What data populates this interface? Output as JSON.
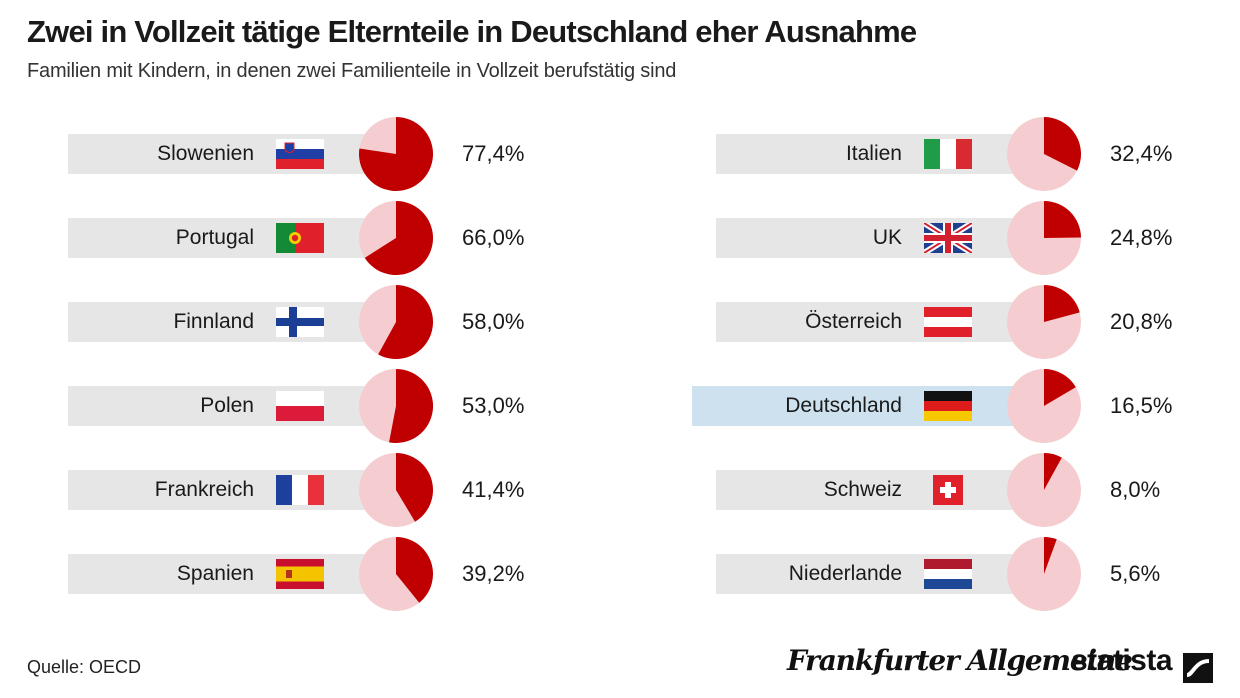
{
  "header": {
    "title": "Zwei in Vollzeit tätige Elternteile in Deutschland eher Ausnahme",
    "subtitle": "Familien mit Kindern, in denen zwei Familienteile in Vollzeit berufstätig sind"
  },
  "chart_data": {
    "type": "pie",
    "title": "Zwei in Vollzeit tätige Elternteile in Deutschland eher Ausnahme",
    "subtitle": "Familien mit Kindern, in denen zwei Familienteile in Vollzeit berufstätig sind",
    "unit": "%",
    "categories": [
      "Slowenien",
      "Portugal",
      "Finnland",
      "Polen",
      "Frankreich",
      "Spanien",
      "Italien",
      "UK",
      "Österreich",
      "Deutschland",
      "Schweiz",
      "Niederlande"
    ],
    "values": [
      77.4,
      66.0,
      58.0,
      53.0,
      41.4,
      39.2,
      32.4,
      24.8,
      20.8,
      16.5,
      8.0,
      5.6
    ],
    "labels": [
      "77,4%",
      "66,0%",
      "58,0%",
      "53,0%",
      "41,4%",
      "39,2%",
      "32,4%",
      "24,8%",
      "20,8%",
      "16,5%",
      "8,0%",
      "5,6%"
    ],
    "flags": [
      "slovenia-flag-icon",
      "portugal-flag-icon",
      "finland-flag-icon",
      "poland-flag-icon",
      "france-flag-icon",
      "spain-flag-icon",
      "italy-flag-icon",
      "uk-flag-icon",
      "austria-flag-icon",
      "germany-flag-icon",
      "switzerland-flag-icon",
      "netherlands-flag-icon"
    ],
    "highlight": "Deutschland",
    "colors": {
      "slice": "#c00000",
      "remainder": "#f5cdd1",
      "bar": "#e6e6e6",
      "highlight_bar": "#cde2ee"
    }
  },
  "footer": {
    "source": "Quelle: OECD",
    "logo_faz": "Frankfurter Allgemeine",
    "logo_statista": "statista"
  }
}
